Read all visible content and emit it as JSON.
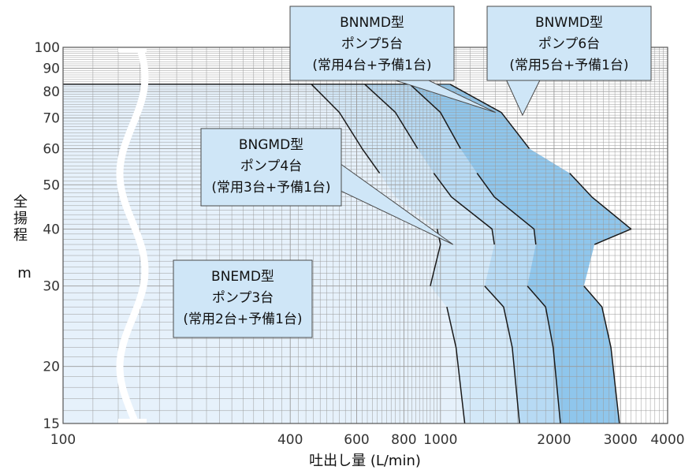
{
  "chart_data": {
    "type": "area",
    "xlabel": "吐出し量 (L/min)",
    "ylabel_chars": [
      "全",
      "揚",
      "程"
    ],
    "ylabel_unit": "m",
    "x_scale": "log",
    "y_scale": "log",
    "xlim": [
      100,
      4000
    ],
    "ylim": [
      15,
      100
    ],
    "x_ticks": [
      {
        "value": 100,
        "label": "100"
      },
      {
        "value": 400,
        "label": "400"
      },
      {
        "value": 600,
        "label": "600"
      },
      {
        "value": 800,
        "label": "800"
      },
      {
        "value": 1000,
        "label": "1000"
      },
      {
        "value": 2000,
        "label": "2000"
      },
      {
        "value": 3000,
        "label": "3000"
      },
      {
        "value": 4000,
        "label": "4000"
      }
    ],
    "y_ticks": [
      {
        "value": 15,
        "label": "15"
      },
      {
        "value": 20,
        "label": "20"
      },
      {
        "value": 30,
        "label": "30"
      },
      {
        "value": 40,
        "label": "40"
      },
      {
        "value": 50,
        "label": "50"
      },
      {
        "value": 60,
        "label": "60"
      },
      {
        "value": 70,
        "label": "70"
      },
      {
        "value": 80,
        "label": "80"
      },
      {
        "value": 90,
        "label": "90"
      },
      {
        "value": 100,
        "label": "100"
      }
    ],
    "grid": true,
    "series": [
      {
        "name": "BNEMD型",
        "lines": [
          "BNEMD型",
          "ポンプ3台",
          "(常用2台+予備1台)"
        ],
        "color": "#e6f1fb",
        "boundary": [
          [
            1160,
            15
          ],
          [
            1100,
            22
          ],
          [
            1040,
            27
          ],
          [
            940,
            30
          ],
          [
            1000,
            37
          ],
          [
            980,
            40
          ],
          [
            760,
            47
          ],
          [
            690,
            53
          ],
          [
            620,
            60
          ],
          [
            540,
            72
          ],
          [
            455,
            83
          ]
        ],
        "steps": [
          [
            [
              1160,
              15
            ],
            [
              1100,
              22
            ],
            [
              1040,
              27
            ]
          ],
          [
            [
              940,
              30
            ],
            [
              1000,
              37
            ],
            [
              980,
              40
            ]
          ],
          [
            [
              690,
              53
            ],
            [
              620,
              60
            ],
            [
              540,
              72
            ],
            [
              455,
              83
            ]
          ]
        ]
      },
      {
        "name": "BNGMD型",
        "lines": [
          "BNGMD型",
          "ポンプ4台",
          "(常用3台+予備1台)"
        ],
        "color": "#d3e8f8",
        "boundary": [
          [
            1620,
            15
          ],
          [
            1550,
            22
          ],
          [
            1470,
            27
          ],
          [
            1310,
            30
          ],
          [
            1390,
            37
          ],
          [
            1370,
            40
          ],
          [
            1070,
            47
          ],
          [
            960,
            53
          ],
          [
            870,
            60
          ],
          [
            760,
            72
          ],
          [
            630,
            83
          ]
        ],
        "steps": [
          [
            [
              1620,
              15
            ],
            [
              1550,
              22
            ],
            [
              1470,
              27
            ],
            [
              1310,
              30
            ]
          ],
          [
            [
              1390,
              37
            ],
            [
              1370,
              40
            ],
            [
              1070,
              47
            ],
            [
              960,
              53
            ]
          ],
          [
            [
              870,
              60
            ],
            [
              760,
              72
            ],
            [
              630,
              83
            ]
          ]
        ]
      },
      {
        "name": "BNNMD型",
        "lines": [
          "BNNMD型",
          "ポンプ5台",
          "(常用4台+予備1台)"
        ],
        "color": "#b7daf4",
        "boundary": [
          [
            2080,
            15
          ],
          [
            1990,
            22
          ],
          [
            1900,
            27
          ],
          [
            1700,
            30
          ],
          [
            1790,
            37
          ],
          [
            1770,
            40
          ],
          [
            1390,
            47
          ],
          [
            1250,
            53
          ],
          [
            1130,
            60
          ],
          [
            1000,
            72
          ],
          [
            830,
            83
          ]
        ],
        "steps": [
          [
            [
              2080,
              15
            ],
            [
              1990,
              22
            ],
            [
              1900,
              27
            ],
            [
              1700,
              30
            ]
          ],
          [
            [
              1790,
              37
            ],
            [
              1770,
              40
            ],
            [
              1390,
              47
            ],
            [
              1250,
              53
            ]
          ],
          [
            [
              1130,
              60
            ],
            [
              1000,
              72
            ],
            [
              830,
              83
            ]
          ]
        ]
      },
      {
        "name": "BNWMD型",
        "lines": [
          "BNWMD型",
          "ポンプ6台",
          "(常用5台+予備1台)"
        ],
        "color": "#8fc6ec",
        "boundary": [
          [
            2980,
            15
          ],
          [
            2830,
            22
          ],
          [
            2680,
            27
          ],
          [
            2400,
            30
          ],
          [
            2560,
            37
          ],
          [
            3200,
            40
          ],
          [
            2520,
            47
          ],
          [
            2200,
            53
          ],
          [
            1720,
            60
          ],
          [
            1450,
            72
          ],
          [
            1060,
            83
          ]
        ],
        "steps": [
          [
            [
              2980,
              15
            ],
            [
              2830,
              22
            ],
            [
              2680,
              27
            ],
            [
              2400,
              30
            ]
          ],
          [
            [
              2560,
              37
            ],
            [
              3200,
              40
            ],
            [
              2520,
              47
            ],
            [
              2200,
              53
            ]
          ],
          [
            [
              1720,
              60
            ],
            [
              1450,
              72
            ],
            [
              1060,
              83
            ]
          ]
        ]
      }
    ],
    "callouts": [
      {
        "series": 2,
        "pointer": [
          1400,
          72
        ]
      },
      {
        "series": 3,
        "pointer": [
          1650,
          71
        ]
      },
      {
        "series": 1,
        "pointer": [
          1080,
          37
        ]
      },
      {
        "series": 0,
        "pointer": null
      }
    ]
  }
}
